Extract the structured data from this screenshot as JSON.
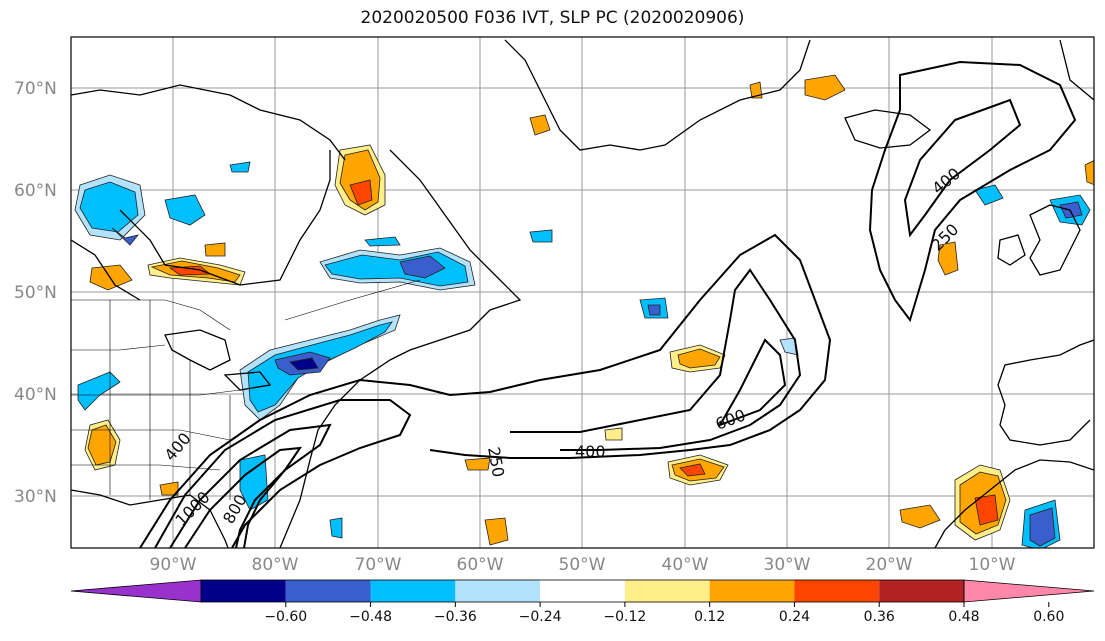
{
  "title": "2020020500 F036 IVT, SLP PC (2020020906)",
  "lat_labels": [
    "70°N",
    "60°N",
    "50°N",
    "40°N",
    "30°N"
  ],
  "lon_labels": [
    "90°W",
    "80°W",
    "70°W",
    "60°W",
    "50°W",
    "40°W",
    "30°W",
    "20°W",
    "10°W"
  ],
  "colorbar": {
    "colors": [
      "#9932cc",
      "#00008b",
      "#3a5fcd",
      "#00bfff",
      "#b2e2fc",
      "#ffffff",
      "#ffee8a",
      "#ffa500",
      "#ff4500",
      "#b22222",
      "#ff88aa"
    ],
    "tick_labels": [
      "−0.60",
      "−0.48",
      "−0.36",
      "−0.24",
      "−0.12",
      "0.12",
      "0.24",
      "0.36",
      "0.48",
      "0.60"
    ]
  },
  "contour_labels": [
    "400",
    "1000",
    "800",
    "250",
    "400",
    "600",
    "400",
    "250"
  ]
}
